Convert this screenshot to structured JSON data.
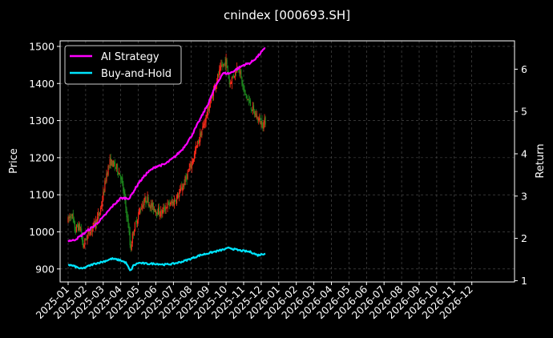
{
  "chart_data": {
    "type": "line",
    "title": "cnindex [000693.SH]",
    "ylabel": "Price",
    "y2label": "Return",
    "ylim": [
      865,
      1515
    ],
    "y2lim": [
      0.97,
      6.67
    ],
    "yticks": [
      900,
      1000,
      1100,
      1200,
      1300,
      1400,
      1500
    ],
    "y2ticks": [
      1,
      2,
      3,
      4,
      5,
      6
    ],
    "x_categories": [
      "2025-01",
      "2025-02",
      "2025-03",
      "2025-04",
      "2025-05",
      "2025-06",
      "2025-07",
      "2025-08",
      "2025-09",
      "2025-10",
      "2025-11",
      "2025-12",
      "2026-01",
      "2026-02",
      "2026-03",
      "2026-04",
      "2026-05",
      "2026-06",
      "2026-07",
      "2026-08",
      "2026-09",
      "2026-10",
      "2026-11",
      "2026-12"
    ],
    "grid": true,
    "legend_position": "top-left",
    "colors": {
      "up": "#ff2a1a",
      "down": "#1e8c1e",
      "ai": "#ff00ff",
      "bh": "#00e5ff",
      "background": "#000000"
    },
    "candles": {
      "name": "Price",
      "anchors": [
        [
          0.0,
          1030
        ],
        [
          0.2,
          1050
        ],
        [
          0.4,
          1000
        ],
        [
          0.5,
          1015
        ],
        [
          0.7,
          1010
        ],
        [
          0.85,
          960
        ],
        [
          1.0,
          980
        ],
        [
          1.2,
          1000
        ],
        [
          1.5,
          1020
        ],
        [
          1.8,
          1050
        ],
        [
          2.0,
          1100
        ],
        [
          2.2,
          1160
        ],
        [
          2.4,
          1190
        ],
        [
          2.6,
          1180
        ],
        [
          2.8,
          1170
        ],
        [
          3.0,
          1150
        ],
        [
          3.15,
          1110
        ],
        [
          3.3,
          1060
        ],
        [
          3.45,
          1010
        ],
        [
          3.55,
          950
        ],
        [
          3.7,
          1000
        ],
        [
          3.9,
          1030
        ],
        [
          4.1,
          1060
        ],
        [
          4.3,
          1080
        ],
        [
          4.5,
          1090
        ],
        [
          4.7,
          1070
        ],
        [
          5.0,
          1060
        ],
        [
          5.3,
          1050
        ],
        [
          5.6,
          1070
        ],
        [
          6.0,
          1080
        ],
        [
          6.3,
          1100
        ],
        [
          6.6,
          1130
        ],
        [
          7.0,
          1180
        ],
        [
          7.4,
          1240
        ],
        [
          7.8,
          1300
        ],
        [
          8.1,
          1350
        ],
        [
          8.4,
          1400
        ],
        [
          8.7,
          1440
        ],
        [
          9.0,
          1460
        ],
        [
          9.2,
          1400
        ],
        [
          9.4,
          1420
        ],
        [
          9.7,
          1450
        ],
        [
          10.0,
          1380
        ],
        [
          10.3,
          1350
        ],
        [
          10.6,
          1320
        ],
        [
          10.9,
          1300
        ],
        [
          11.1,
          1290
        ],
        [
          11.25,
          1300
        ]
      ]
    },
    "series": [
      {
        "name": "AI Strategy",
        "anchors": [
          [
            0.0,
            1.95
          ],
          [
            0.3,
            1.95
          ],
          [
            0.7,
            2.05
          ],
          [
            1.0,
            2.15
          ],
          [
            1.5,
            2.3
          ],
          [
            2.0,
            2.5
          ],
          [
            2.5,
            2.75
          ],
          [
            3.0,
            2.95
          ],
          [
            3.5,
            2.95
          ],
          [
            4.0,
            3.3
          ],
          [
            4.5,
            3.55
          ],
          [
            5.0,
            3.7
          ],
          [
            5.5,
            3.75
          ],
          [
            6.0,
            3.9
          ],
          [
            6.5,
            4.1
          ],
          [
            7.0,
            4.4
          ],
          [
            7.5,
            4.8
          ],
          [
            8.0,
            5.2
          ],
          [
            8.4,
            5.6
          ],
          [
            8.8,
            5.9
          ],
          [
            9.2,
            5.9
          ],
          [
            9.6,
            6.0
          ],
          [
            10.0,
            6.1
          ],
          [
            10.4,
            6.15
          ],
          [
            10.8,
            6.3
          ],
          [
            11.0,
            6.4
          ],
          [
            11.25,
            6.5
          ]
        ]
      },
      {
        "name": "Buy-and-Hold",
        "anchors": [
          [
            0.0,
            1.38
          ],
          [
            0.3,
            1.35
          ],
          [
            0.6,
            1.3
          ],
          [
            0.8,
            1.28
          ],
          [
            1.0,
            1.32
          ],
          [
            1.5,
            1.4
          ],
          [
            2.0,
            1.45
          ],
          [
            2.5,
            1.52
          ],
          [
            3.0,
            1.48
          ],
          [
            3.3,
            1.42
          ],
          [
            3.55,
            1.22
          ],
          [
            3.7,
            1.35
          ],
          [
            4.0,
            1.42
          ],
          [
            4.5,
            1.4
          ],
          [
            5.0,
            1.4
          ],
          [
            5.5,
            1.38
          ],
          [
            6.0,
            1.4
          ],
          [
            6.5,
            1.45
          ],
          [
            7.0,
            1.52
          ],
          [
            7.5,
            1.6
          ],
          [
            8.0,
            1.65
          ],
          [
            8.5,
            1.7
          ],
          [
            9.0,
            1.75
          ],
          [
            9.2,
            1.78
          ],
          [
            9.4,
            1.75
          ],
          [
            9.7,
            1.72
          ],
          [
            10.0,
            1.7
          ],
          [
            10.4,
            1.68
          ],
          [
            10.8,
            1.6
          ],
          [
            11.0,
            1.62
          ],
          [
            11.25,
            1.65
          ]
        ]
      }
    ]
  }
}
